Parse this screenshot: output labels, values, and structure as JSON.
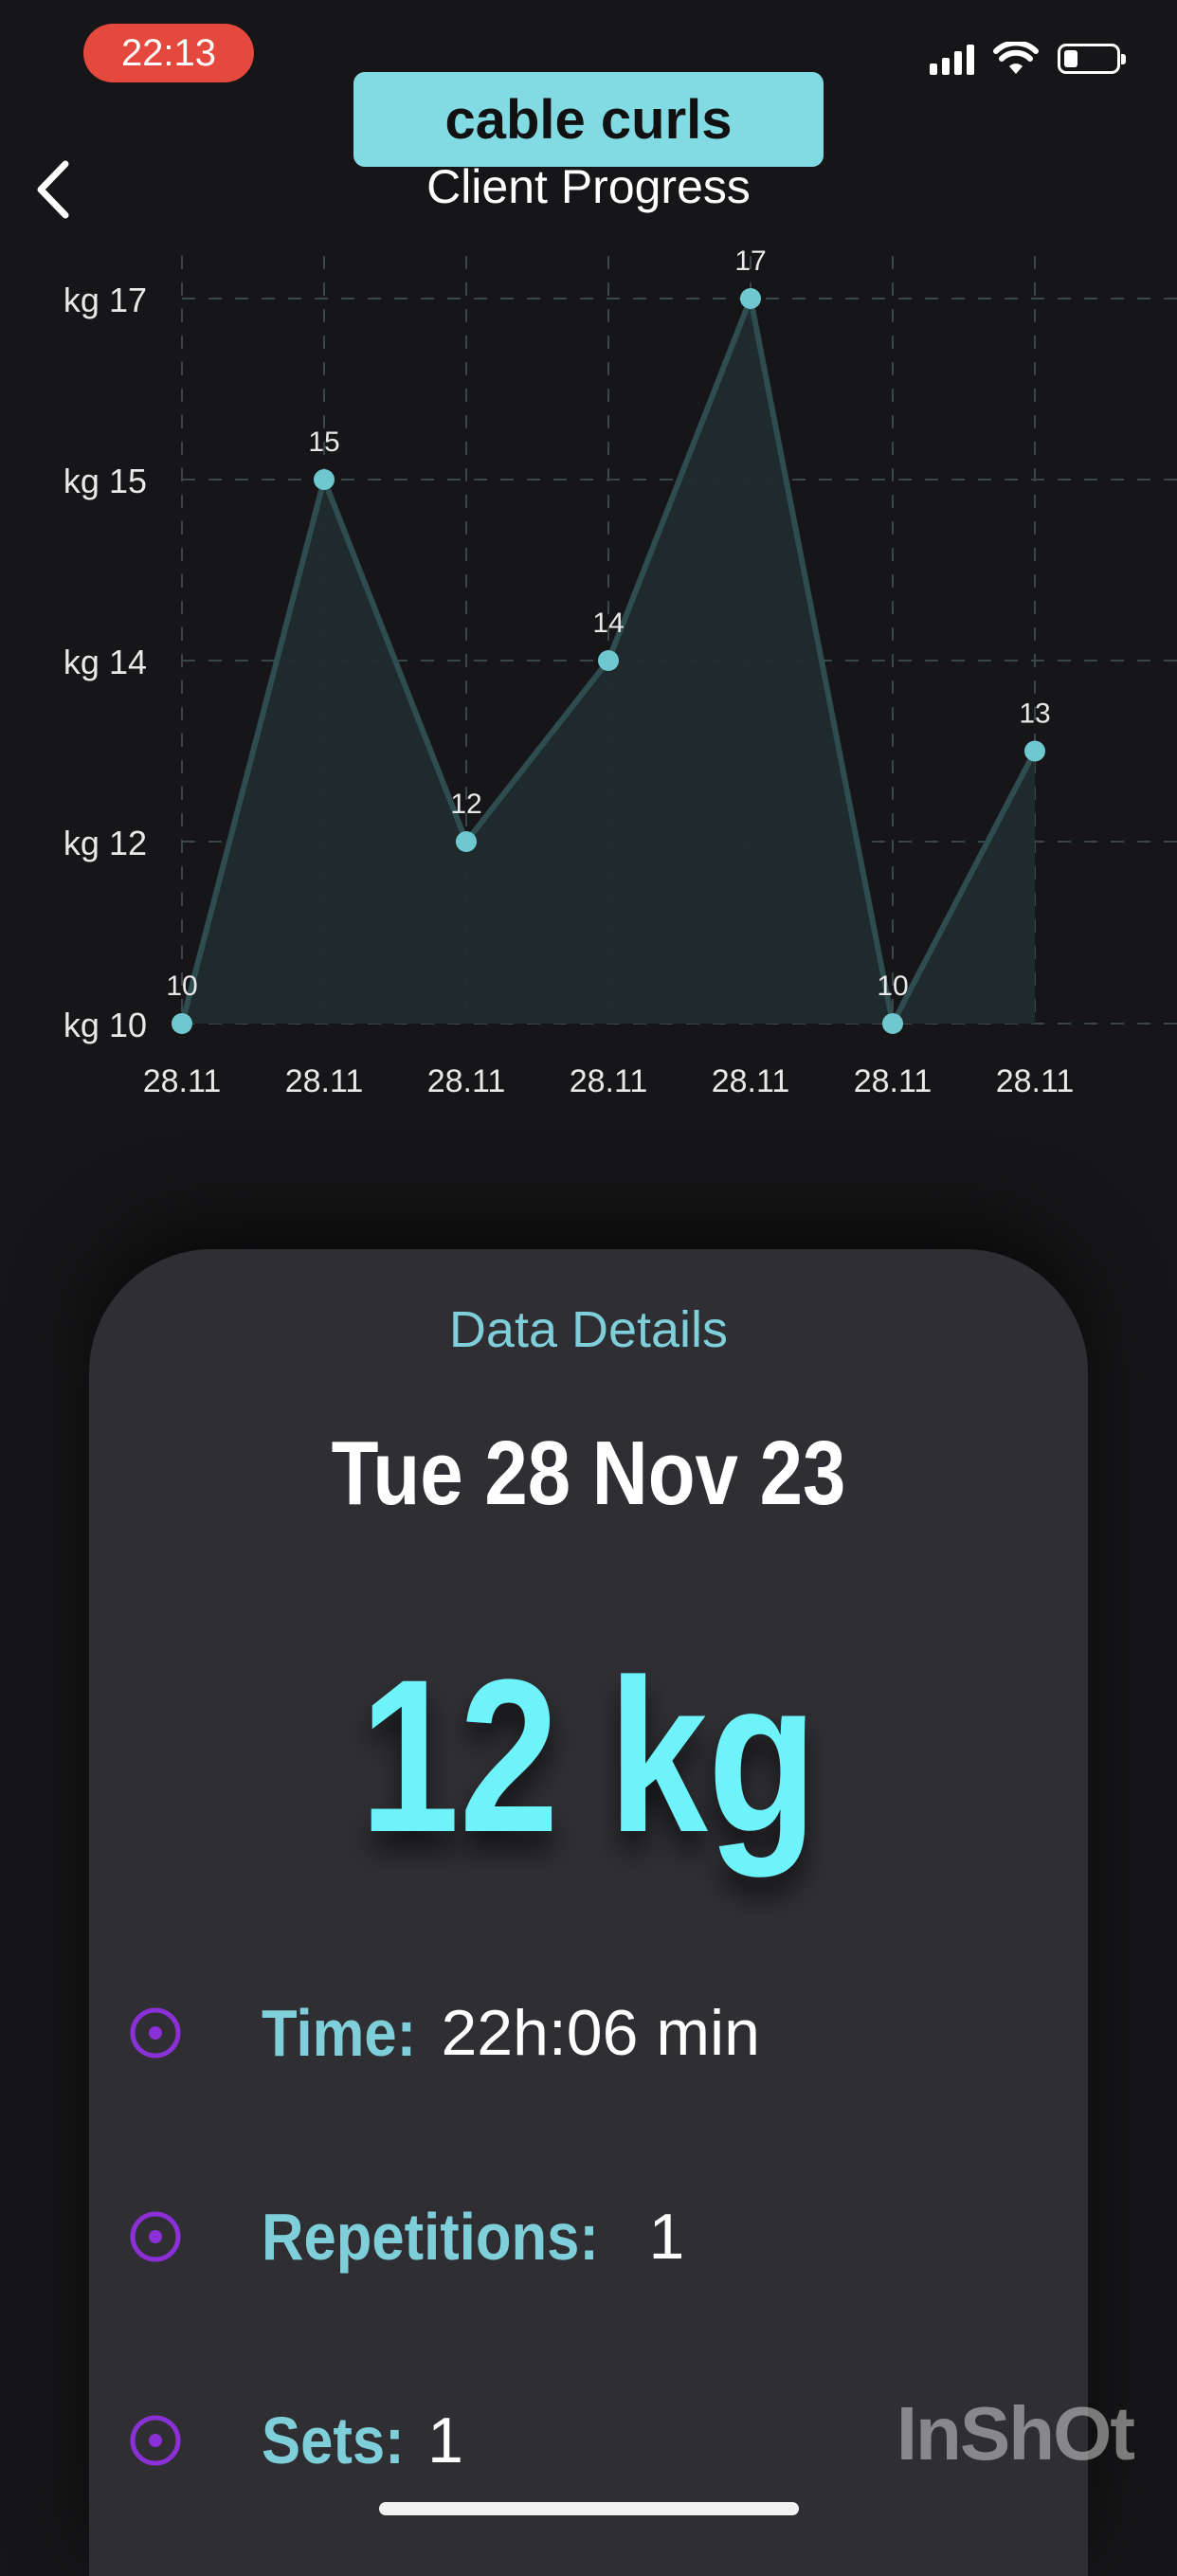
{
  "status_bar": {
    "time": "22:13"
  },
  "header": {
    "exercise_name": "cable curls",
    "title": "Client Progress",
    "back_icon": "chevron-left-icon"
  },
  "chart_data": {
    "type": "area",
    "x": [
      "28.11",
      "28.11",
      "28.11",
      "28.11",
      "28.11",
      "28.11",
      "28.11"
    ],
    "values": [
      10,
      15,
      12,
      14,
      17,
      10,
      13
    ],
    "data_labels": [
      "10",
      "15",
      "12",
      "14",
      "17",
      "10",
      "13"
    ],
    "y_ticks": [
      10,
      12,
      14,
      15,
      17
    ],
    "y_tick_labels": [
      "kg 10",
      "kg 12",
      "kg 14",
      "kg 15",
      "kg 17"
    ],
    "ylim": [
      10,
      17
    ],
    "grid": true,
    "colors": {
      "line": "#2f4c4f",
      "fill": "#1f2b2d",
      "point": "#6fc8d0",
      "grid": "#3a4546"
    }
  },
  "details": {
    "heading": "Data Details",
    "date": "Tue 28 Nov 23",
    "weight": "12 kg",
    "rows": [
      {
        "label": "Time:",
        "value": "22h:06 min",
        "icon": "target-icon"
      },
      {
        "label": "Repetitions:",
        "value": "1",
        "icon": "target-icon"
      },
      {
        "label": "Sets:",
        "value": "1",
        "icon": "target-icon"
      }
    ]
  },
  "watermark": "InShOt",
  "colors": {
    "accent": "#7ecfda",
    "weight": "#6ef3fb",
    "banner": "#82dbe3",
    "time_pill": "#e5483c",
    "row_icon": "#8b2fd6"
  }
}
